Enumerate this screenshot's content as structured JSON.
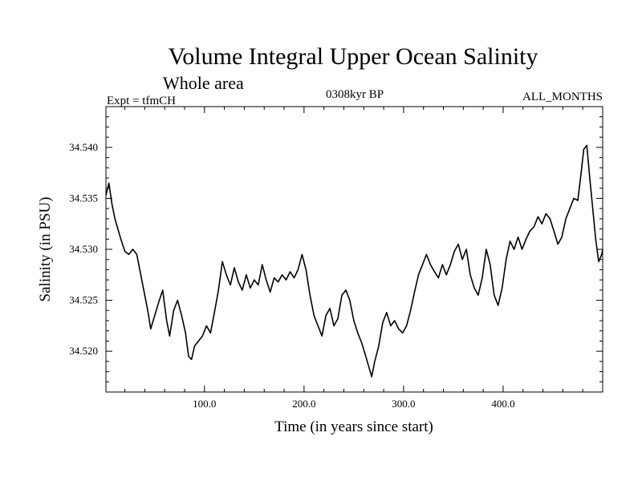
{
  "chart_data": {
    "type": "line",
    "title": "Volume Integral Upper Ocean Salinity",
    "subtitle": "Whole area",
    "experiment_label": "Expt = tfmCH",
    "period_label": "0308kyr BP",
    "months_label": "ALL_MONTHS",
    "xlabel": "Time (in years since start)",
    "ylabel": "Salinity (in PSU)",
    "xlim": [
      1,
      500
    ],
    "ylim": [
      34.516,
      34.544
    ],
    "x_ticks": [
      100,
      200,
      300,
      400
    ],
    "x_tick_labels": [
      "100.0",
      "200.0",
      "300.0",
      "400.0"
    ],
    "y_ticks": [
      34.52,
      34.525,
      34.53,
      34.535,
      34.54
    ],
    "y_tick_labels": [
      "34.520",
      "34.525",
      "34.530",
      "34.535",
      "34.540"
    ],
    "series": [
      {
        "name": "Salinity",
        "color": "#000000",
        "points": [
          [
            1,
            34.5353
          ],
          [
            4,
            34.5365
          ],
          [
            7,
            34.5345
          ],
          [
            10,
            34.533
          ],
          [
            13,
            34.532
          ],
          [
            16,
            34.531
          ],
          [
            20,
            34.5298
          ],
          [
            24,
            34.5295
          ],
          [
            28,
            34.53
          ],
          [
            32,
            34.5295
          ],
          [
            36,
            34.5275
          ],
          [
            40,
            34.5255
          ],
          [
            43,
            34.524
          ],
          [
            46,
            34.5222
          ],
          [
            50,
            34.5235
          ],
          [
            54,
            34.5248
          ],
          [
            58,
            34.526
          ],
          [
            62,
            34.523
          ],
          [
            65,
            34.5215
          ],
          [
            69,
            34.524
          ],
          [
            73,
            34.525
          ],
          [
            77,
            34.5235
          ],
          [
            81,
            34.5218
          ],
          [
            84,
            34.5195
          ],
          [
            87,
            34.5192
          ],
          [
            90,
            34.5205
          ],
          [
            94,
            34.521
          ],
          [
            98,
            34.5215
          ],
          [
            102,
            34.5225
          ],
          [
            106,
            34.5218
          ],
          [
            110,
            34.5238
          ],
          [
            114,
            34.526
          ],
          [
            118,
            34.5288
          ],
          [
            122,
            34.5275
          ],
          [
            126,
            34.5265
          ],
          [
            130,
            34.5282
          ],
          [
            134,
            34.5268
          ],
          [
            138,
            34.526
          ],
          [
            142,
            34.5275
          ],
          [
            146,
            34.5262
          ],
          [
            150,
            34.527
          ],
          [
            154,
            34.5265
          ],
          [
            158,
            34.5285
          ],
          [
            162,
            34.527
          ],
          [
            166,
            34.5258
          ],
          [
            170,
            34.5272
          ],
          [
            174,
            34.5268
          ],
          [
            178,
            34.5275
          ],
          [
            182,
            34.527
          ],
          [
            186,
            34.5278
          ],
          [
            190,
            34.5272
          ],
          [
            194,
            34.528
          ],
          [
            198,
            34.5295
          ],
          [
            202,
            34.528
          ],
          [
            206,
            34.5255
          ],
          [
            210,
            34.5235
          ],
          [
            214,
            34.5225
          ],
          [
            218,
            34.5215
          ],
          [
            222,
            34.5235
          ],
          [
            226,
            34.5242
          ],
          [
            230,
            34.5225
          ],
          [
            234,
            34.5232
          ],
          [
            238,
            34.5255
          ],
          [
            242,
            34.526
          ],
          [
            246,
            34.525
          ],
          [
            250,
            34.523
          ],
          [
            254,
            34.5218
          ],
          [
            258,
            34.5208
          ],
          [
            262,
            34.5195
          ],
          [
            265,
            34.5185
          ],
          [
            268,
            34.5175
          ],
          [
            271,
            34.519
          ],
          [
            275,
            34.5205
          ],
          [
            279,
            34.5228
          ],
          [
            283,
            34.5238
          ],
          [
            287,
            34.5225
          ],
          [
            291,
            34.523
          ],
          [
            295,
            34.5222
          ],
          [
            299,
            34.5218
          ],
          [
            303,
            34.5225
          ],
          [
            307,
            34.524
          ],
          [
            311,
            34.5258
          ],
          [
            315,
            34.5275
          ],
          [
            319,
            34.5285
          ],
          [
            323,
            34.5295
          ],
          [
            327,
            34.5285
          ],
          [
            331,
            34.5278
          ],
          [
            335,
            34.5272
          ],
          [
            339,
            34.5285
          ],
          [
            343,
            34.5275
          ],
          [
            347,
            34.5285
          ],
          [
            351,
            34.5298
          ],
          [
            355,
            34.5305
          ],
          [
            359,
            34.529
          ],
          [
            363,
            34.53
          ],
          [
            367,
            34.5275
          ],
          [
            371,
            34.5262
          ],
          [
            375,
            34.5255
          ],
          [
            379,
            34.5272
          ],
          [
            383,
            34.53
          ],
          [
            387,
            34.5285
          ],
          [
            391,
            34.5255
          ],
          [
            395,
            34.5245
          ],
          [
            399,
            34.5262
          ],
          [
            403,
            34.529
          ],
          [
            407,
            34.5308
          ],
          [
            411,
            34.53
          ],
          [
            415,
            34.5312
          ],
          [
            419,
            34.53
          ],
          [
            423,
            34.531
          ],
          [
            427,
            34.5318
          ],
          [
            431,
            34.5322
          ],
          [
            435,
            34.5332
          ],
          [
            439,
            34.5325
          ],
          [
            443,
            34.5335
          ],
          [
            447,
            34.533
          ],
          [
            451,
            34.5318
          ],
          [
            455,
            34.5305
          ],
          [
            459,
            34.5312
          ],
          [
            463,
            34.533
          ],
          [
            467,
            34.534
          ],
          [
            471,
            34.535
          ],
          [
            475,
            34.5348
          ],
          [
            478,
            34.5372
          ],
          [
            481,
            34.5398
          ],
          [
            484,
            34.5402
          ],
          [
            487,
            34.537
          ],
          [
            490,
            34.534
          ],
          [
            493,
            34.531
          ],
          [
            496,
            34.5288
          ],
          [
            499,
            34.5295
          ],
          [
            500,
            34.53
          ]
        ]
      }
    ]
  }
}
